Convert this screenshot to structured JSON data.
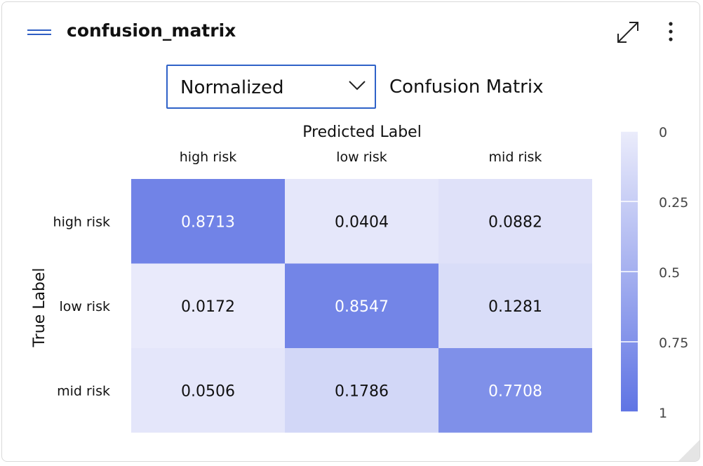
{
  "widget": {
    "title": "confusion_matrix"
  },
  "icons": {
    "menu": "hamburger-menu-icon",
    "expand": "expand-icon",
    "more": "more-vertical-icon",
    "dropdown": "chevron-down-icon"
  },
  "view_select": {
    "value": "Normalized"
  },
  "chart_data": {
    "type": "heatmap",
    "title": "Confusion Matrix",
    "xlabel": "Predicted Label",
    "ylabel": "True Label",
    "x_categories": [
      "high risk",
      "low risk",
      "mid risk"
    ],
    "y_categories": [
      "high risk",
      "low risk",
      "mid risk"
    ],
    "values": [
      [
        0.8713,
        0.0404,
        0.0882
      ],
      [
        0.0172,
        0.8547,
        0.1281
      ],
      [
        0.0506,
        0.1786,
        0.7708
      ]
    ],
    "value_labels": [
      [
        "0.8713",
        "0.0404",
        "0.0882"
      ],
      [
        "0.0172",
        "0.8547",
        "0.1281"
      ],
      [
        "0.0506",
        "0.1786",
        "0.7708"
      ]
    ],
    "colorbar": {
      "min": 0,
      "max": 1,
      "ticks": [
        0,
        0.25,
        0.5,
        0.75,
        1
      ],
      "tick_labels": [
        "0",
        "0.25",
        "0.5",
        "0.75",
        "1"
      ]
    },
    "colors": {
      "low": "#ebecfb",
      "high": "#5f74e4"
    }
  }
}
